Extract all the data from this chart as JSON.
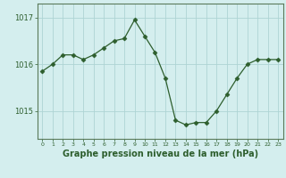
{
  "x": [
    0,
    1,
    2,
    3,
    4,
    5,
    6,
    7,
    8,
    9,
    10,
    11,
    12,
    13,
    14,
    15,
    16,
    17,
    18,
    19,
    20,
    21,
    22,
    23
  ],
  "y": [
    1015.85,
    1016.0,
    1016.2,
    1016.2,
    1016.1,
    1016.2,
    1016.35,
    1016.5,
    1016.55,
    1016.95,
    1016.6,
    1016.25,
    1015.7,
    1014.8,
    1014.7,
    1014.75,
    1014.75,
    1015.0,
    1015.35,
    1015.7,
    1016.0,
    1016.1,
    1016.1,
    1016.1
  ],
  "line_color": "#2d5e2d",
  "marker": "D",
  "marker_size": 2.5,
  "bg_color": "#d4eeee",
  "grid_color": "#aed4d4",
  "xlabel": "Graphe pression niveau de la mer (hPa)",
  "xlabel_fontsize": 7,
  "yticks": [
    1015,
    1016,
    1017
  ],
  "ylim": [
    1014.4,
    1017.3
  ],
  "xlim": [
    -0.5,
    23.5
  ],
  "figsize": [
    3.2,
    2.0
  ],
  "dpi": 100,
  "tick_color": "#2d5e2d",
  "spine_color": "#5a7a5a",
  "label_color": "#2d5e2d"
}
